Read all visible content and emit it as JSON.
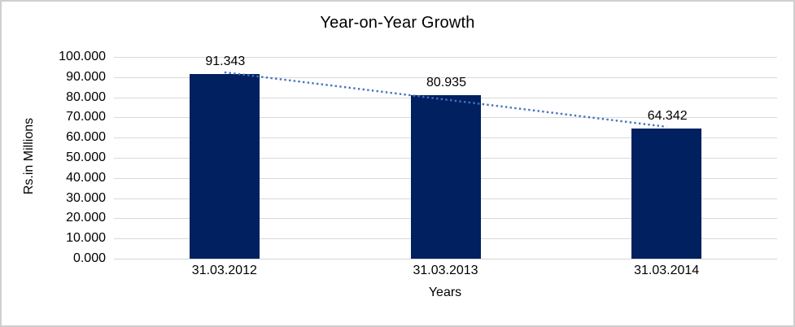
{
  "chart_data": {
    "type": "bar",
    "title": "Year-on-Year Growth",
    "categories": [
      "31.03.2012",
      "31.03.2013",
      "31.03.2014"
    ],
    "values": [
      91.343,
      80.935,
      64.342
    ],
    "value_labels": [
      "91.343",
      "80.935",
      "64.342"
    ],
    "xlabel": "Years",
    "ylabel": "Rs.in Millions",
    "ylim": [
      0,
      100
    ],
    "y_tick_step": 10,
    "y_tick_labels": [
      "0.000",
      "10.000",
      "20.000",
      "30.000",
      "40.000",
      "50.000",
      "60.000",
      "70.000",
      "80.000",
      "90.000",
      "100.000"
    ],
    "grid": true,
    "legend": "none",
    "bar_color": "#002060",
    "gridline_color": "#D9D9D9",
    "text_color": "#000000",
    "trendline": {
      "type": "linear",
      "style": "dotted",
      "color": "#4472C4"
    }
  }
}
